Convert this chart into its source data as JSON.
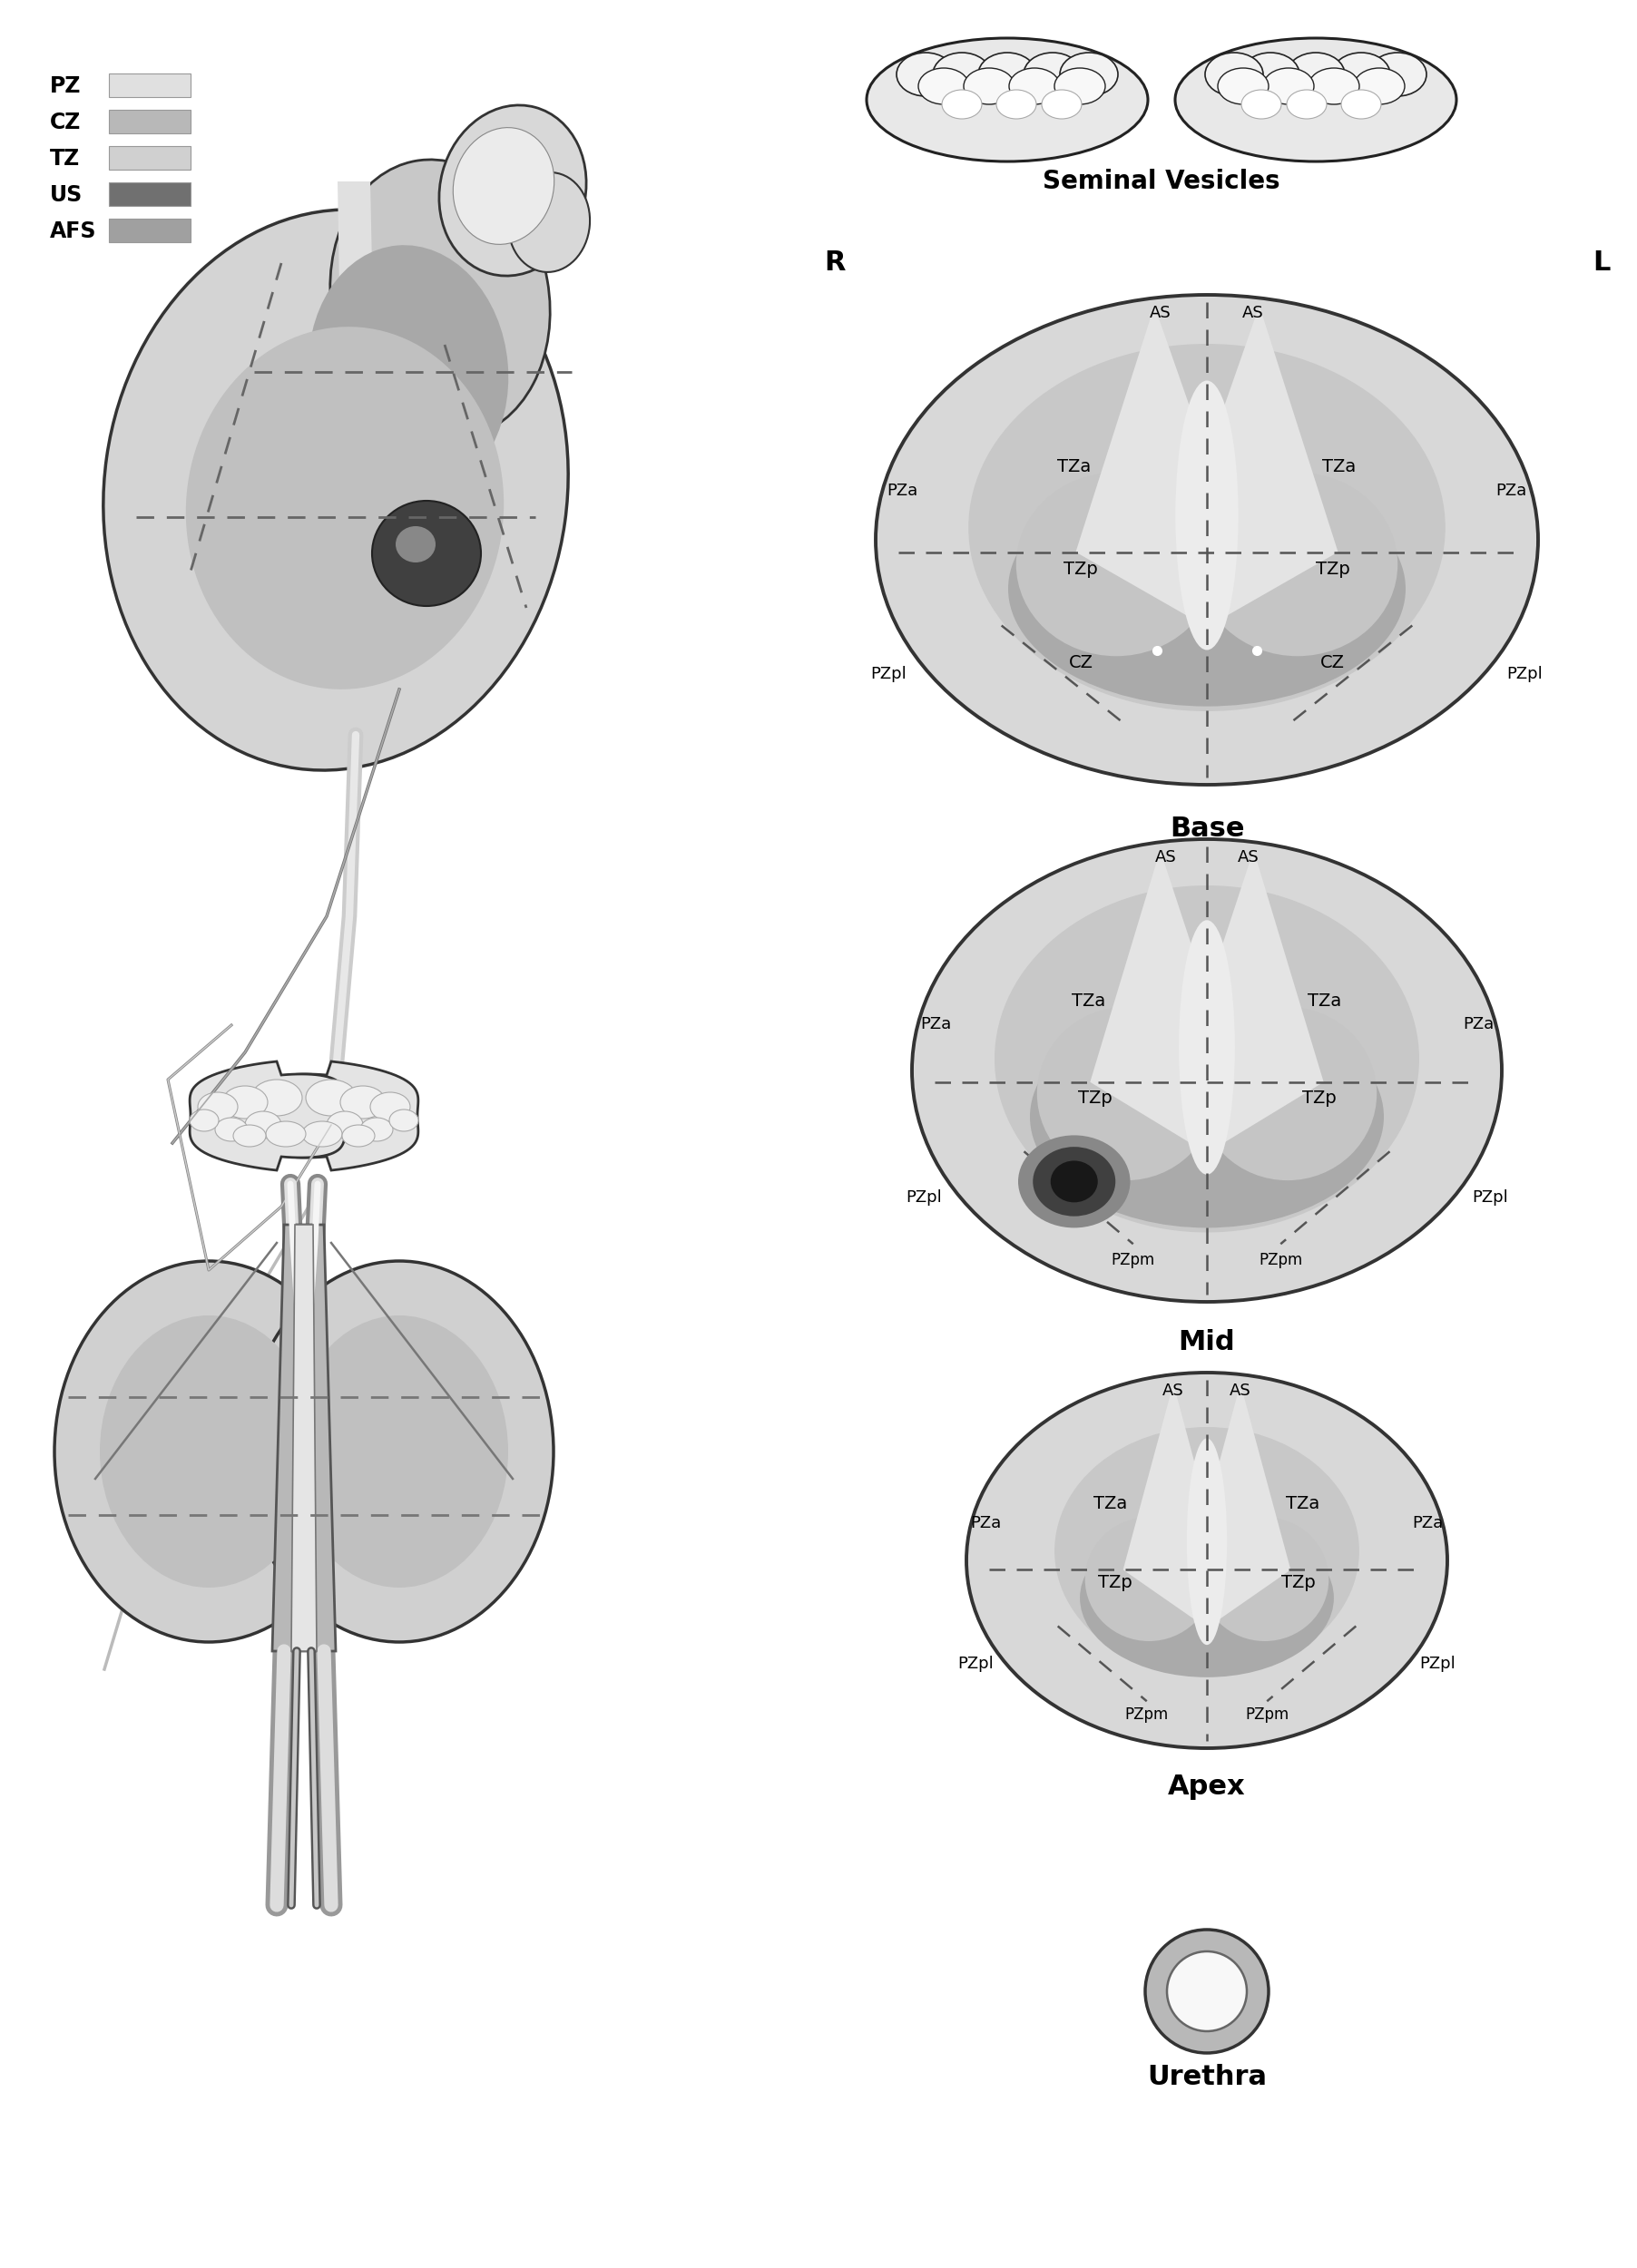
{
  "legend_labels": [
    "PZ",
    "CZ",
    "TZ",
    "US",
    "AFS"
  ],
  "legend_colors": [
    "#e0e0e0",
    "#b8b8b8",
    "#d0d0d0",
    "#707070",
    "#a0a0a0"
  ],
  "seminal_vesicles_label": "Seminal Vesicles",
  "R_label": "R",
  "L_label": "L",
  "base_label": "Base",
  "mid_label": "Mid",
  "apex_label": "Apex",
  "urethra_label": "Urethra",
  "bg_color": "#ffffff",
  "pz_color": "#d8d8d8",
  "cz_color": "#aaaaaa",
  "tz_color": "#c8c8c8",
  "tz_light_color": "#e0e0e0",
  "us_color": "#686868",
  "afs_color": "#b0b0b0",
  "as_color": "#e8e8e8",
  "outer_dark": "#333333",
  "lesion_dark": "#303030",
  "lesion_mid": "#707070"
}
